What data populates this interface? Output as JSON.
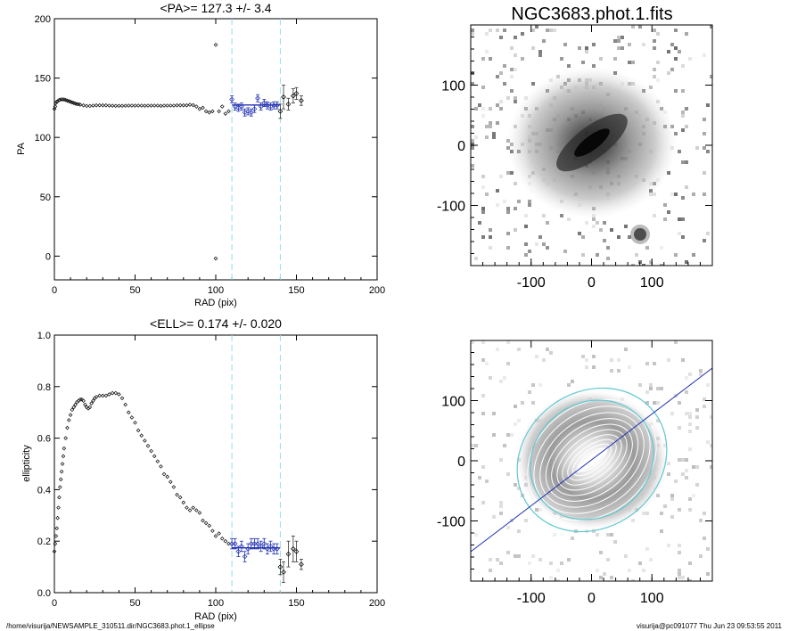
{
  "footer": {
    "left": "/home/visurija/NEWSAMPLE_310511.dir/NGC3683.phot.1_ellipse",
    "right": "visurija@pc091077  Thu Jun 23 09:53:55 2011"
  },
  "colors": {
    "fit": "#1f2fb0",
    "marker": "#cfeff0",
    "points": "#000000",
    "contour": "#ffffff",
    "ellipse": "#5fc8d0"
  },
  "chart_data": [
    {
      "type": "scatter",
      "title": "<PA>= 127.3 +/-   3.4",
      "xlabel": "RAD (pix)",
      "ylabel": "PA",
      "xlim": [
        0,
        200
      ],
      "ylim": [
        -20,
        200
      ],
      "xticks": [
        "0",
        "50",
        "100",
        "150",
        "200"
      ],
      "yticks": [
        "0",
        "50",
        "100",
        "150",
        "200"
      ],
      "vlines": [
        110,
        140
      ],
      "fit": {
        "x": [
          110,
          140
        ],
        "y": [
          127.3,
          127.3
        ]
      },
      "series": [
        {
          "points": [
            [
              0,
              124
            ],
            [
              0.5,
              126
            ],
            [
              1,
              129
            ],
            [
              1.5,
              130
            ],
            [
              2,
              130.5
            ],
            [
              3,
              131.5
            ],
            [
              4,
              132
            ],
            [
              5,
              132
            ],
            [
              6,
              132
            ],
            [
              7,
              131.5
            ],
            [
              8,
              131
            ],
            [
              9,
              130.5
            ],
            [
              10,
              130
            ],
            [
              11,
              129.5
            ],
            [
              12,
              129
            ],
            [
              13,
              128.5
            ],
            [
              14,
              128
            ],
            [
              15,
              128
            ],
            [
              16,
              127.5
            ],
            [
              18,
              127
            ],
            [
              20,
              126.5
            ],
            [
              22,
              126.5
            ],
            [
              24,
              126.8
            ],
            [
              26,
              127
            ],
            [
              28,
              127
            ],
            [
              30,
              127
            ],
            [
              32,
              127
            ],
            [
              34,
              126.8
            ],
            [
              36,
              126.7
            ],
            [
              38,
              126.6
            ],
            [
              40,
              126.6
            ],
            [
              42,
              126.6
            ],
            [
              44,
              126.7
            ],
            [
              46,
              126.8
            ],
            [
              48,
              126.8
            ],
            [
              50,
              126.8
            ],
            [
              52,
              126.8
            ],
            [
              54,
              126.8
            ],
            [
              56,
              126.7
            ],
            [
              58,
              126.8
            ],
            [
              60,
              126.8
            ],
            [
              62,
              126.8
            ],
            [
              64,
              126.8
            ],
            [
              66,
              126.6
            ],
            [
              68,
              126.8
            ],
            [
              70,
              126.8
            ],
            [
              72,
              126.8
            ],
            [
              74,
              126.8
            ],
            [
              76,
              127
            ],
            [
              78,
              127
            ],
            [
              80,
              127
            ],
            [
              82,
              127
            ],
            [
              84,
              127.5
            ],
            [
              86,
              127.2
            ],
            [
              88,
              126
            ],
            [
              90,
              124
            ],
            [
              92,
              125
            ],
            [
              94,
              122
            ],
            [
              96,
              121
            ],
            [
              98,
              122
            ],
            [
              100,
              178
            ],
            [
              100,
              -2
            ],
            [
              102,
              122
            ],
            [
              104,
              126
            ],
            [
              106,
              120
            ],
            [
              108,
              122
            ]
          ]
        },
        {
          "points": [
            [
              110,
              132
            ],
            [
              112,
              126
            ],
            [
              114,
              125
            ],
            [
              116,
              126
            ],
            [
              118,
              121
            ],
            [
              120,
              122
            ],
            [
              122,
              121
            ],
            [
              124,
              124
            ],
            [
              126,
              133
            ],
            [
              128,
              126
            ],
            [
              130,
              129
            ],
            [
              132,
              127
            ],
            [
              134,
              126
            ],
            [
              136,
              127
            ],
            [
              138,
              127
            ]
          ],
          "errors": [
            3,
            3,
            3,
            3,
            3,
            3,
            3,
            3,
            3,
            3,
            3,
            3,
            3,
            3,
            3
          ]
        },
        {
          "points": [
            [
              140,
              122
            ],
            [
              142,
              134
            ],
            [
              145,
              128
            ],
            [
              148,
              135
            ],
            [
              150,
              137
            ],
            [
              153,
              131
            ]
          ],
          "errors": [
            6,
            10,
            5,
            6,
            5,
            4
          ]
        }
      ]
    },
    {
      "type": "image",
      "title": "NGC3683.phot.1.fits",
      "xlim": [
        -200,
        200
      ],
      "ylim": [
        -200,
        200
      ],
      "xticks": [
        "-100",
        "0",
        "100"
      ],
      "yticks": [
        "-100",
        "0",
        "100"
      ]
    },
    {
      "type": "scatter",
      "title": "<ELL>= 0.174 +/-  0.020",
      "xlabel": "RAD (pix)",
      "ylabel": "ellipticity",
      "xlim": [
        0,
        200
      ],
      "ylim": [
        0,
        1
      ],
      "xticks": [
        "0",
        "50",
        "100",
        "150",
        "200"
      ],
      "yticks": [
        "0.0",
        "0.2",
        "0.4",
        "0.6",
        "0.8",
        "1.0"
      ],
      "vlines": [
        110,
        140
      ],
      "fit": {
        "x": [
          110,
          140
        ],
        "y": [
          0.174,
          0.174
        ]
      },
      "series": [
        {
          "points": [
            [
              0,
              0.16
            ],
            [
              0.5,
              0.19
            ],
            [
              1,
              0.22
            ],
            [
              1.5,
              0.25
            ],
            [
              2,
              0.29
            ],
            [
              2.5,
              0.33
            ],
            [
              3,
              0.37
            ],
            [
              3.5,
              0.41
            ],
            [
              4,
              0.44
            ],
            [
              4.5,
              0.47
            ],
            [
              5,
              0.5
            ],
            [
              5.5,
              0.53
            ],
            [
              6,
              0.56
            ],
            [
              7,
              0.6
            ],
            [
              8,
              0.64
            ],
            [
              9,
              0.67
            ],
            [
              10,
              0.69
            ],
            [
              11,
              0.71
            ],
            [
              12,
              0.72
            ],
            [
              13,
              0.73
            ],
            [
              14,
              0.74
            ],
            [
              15,
              0.745
            ],
            [
              16,
              0.75
            ],
            [
              17,
              0.75
            ],
            [
              18,
              0.745
            ],
            [
              19,
              0.73
            ],
            [
              20,
              0.72
            ],
            [
              21,
              0.715
            ],
            [
              22,
              0.72
            ],
            [
              23,
              0.735
            ],
            [
              24,
              0.745
            ],
            [
              25,
              0.755
            ],
            [
              26,
              0.76
            ],
            [
              28,
              0.765
            ],
            [
              30,
              0.765
            ],
            [
              32,
              0.765
            ],
            [
              34,
              0.77
            ],
            [
              36,
              0.775
            ],
            [
              38,
              0.775
            ],
            [
              40,
              0.77
            ],
            [
              42,
              0.755
            ],
            [
              44,
              0.73
            ],
            [
              46,
              0.7
            ],
            [
              48,
              0.68
            ],
            [
              50,
              0.66
            ],
            [
              52,
              0.63
            ],
            [
              54,
              0.61
            ],
            [
              56,
              0.59
            ],
            [
              58,
              0.57
            ],
            [
              60,
              0.55
            ],
            [
              62,
              0.53
            ],
            [
              64,
              0.51
            ],
            [
              66,
              0.49
            ],
            [
              68,
              0.46
            ],
            [
              70,
              0.45
            ],
            [
              72,
              0.43
            ],
            [
              74,
              0.41
            ],
            [
              76,
              0.38
            ],
            [
              78,
              0.37
            ],
            [
              80,
              0.35
            ],
            [
              82,
              0.33
            ],
            [
              84,
              0.32
            ],
            [
              86,
              0.33
            ],
            [
              88,
              0.32
            ],
            [
              90,
              0.31
            ],
            [
              92,
              0.28
            ],
            [
              94,
              0.27
            ],
            [
              96,
              0.26
            ],
            [
              98,
              0.24
            ],
            [
              100,
              0.22
            ],
            [
              102,
              0.23
            ],
            [
              104,
              0.21
            ],
            [
              106,
              0.2
            ],
            [
              108,
              0.19
            ]
          ]
        },
        {
          "points": [
            [
              110,
              0.19
            ],
            [
              112,
              0.19
            ],
            [
              114,
              0.16
            ],
            [
              116,
              0.18
            ],
            [
              118,
              0.14
            ],
            [
              120,
              0.17
            ],
            [
              122,
              0.19
            ],
            [
              124,
              0.19
            ],
            [
              126,
              0.19
            ],
            [
              128,
              0.18
            ],
            [
              130,
              0.19
            ],
            [
              132,
              0.17
            ],
            [
              134,
              0.18
            ],
            [
              136,
              0.17
            ],
            [
              138,
              0.17
            ]
          ],
          "errors": [
            0.02,
            0.02,
            0.02,
            0.02,
            0.02,
            0.02,
            0.02,
            0.02,
            0.02,
            0.02,
            0.02,
            0.02,
            0.02,
            0.02,
            0.02
          ]
        },
        {
          "points": [
            [
              140,
              0.1
            ],
            [
              142,
              0.08
            ],
            [
              145,
              0.15
            ],
            [
              148,
              0.17
            ],
            [
              150,
              0.16
            ],
            [
              153,
              0.11
            ]
          ],
          "errors": [
            0.03,
            0.04,
            0.05,
            0.05,
            0.04,
            0.02
          ]
        }
      ]
    },
    {
      "type": "image",
      "xlim": [
        -200,
        200
      ],
      "ylim": [
        -200,
        200
      ],
      "xticks": [
        "-100",
        "0",
        "100"
      ],
      "yticks": [
        "-100",
        "0",
        "100"
      ]
    }
  ]
}
